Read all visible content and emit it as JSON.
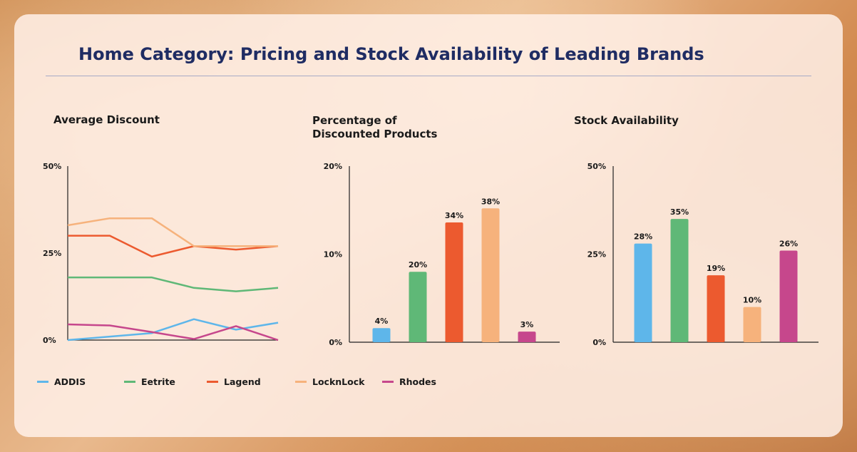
{
  "page": {
    "title": "Home Category: Pricing and Stock Availability of Leading Brands"
  },
  "colors": {
    "ADDIS": "#5eb6ea",
    "Eetrite": "#5fb877",
    "Lagend": "#ec5a2f",
    "LocknLock": "#f6b27c",
    "Rhodes": "#c6478c",
    "title": "#1f2c63"
  },
  "legend": {
    "items": [
      "ADDIS",
      "Eetrite",
      "Lagend",
      "LocknLock",
      "Rhodes"
    ]
  },
  "chart_data": [
    {
      "type": "line",
      "title": "Average Discount",
      "x": [
        1,
        2,
        3,
        4,
        5,
        6
      ],
      "ylim": [
        0,
        50
      ],
      "yticks": [
        "0%",
        "25%",
        "50%"
      ],
      "series": [
        {
          "name": "ADDIS",
          "values": [
            0,
            1,
            2,
            6,
            3,
            5
          ]
        },
        {
          "name": "Eetrite",
          "values": [
            18,
            18,
            18,
            15,
            14,
            15
          ]
        },
        {
          "name": "Lagend",
          "values": [
            30,
            30,
            24,
            27,
            26,
            27
          ]
        },
        {
          "name": "LocknLock",
          "values": [
            33,
            35,
            35,
            27,
            27,
            27
          ]
        },
        {
          "name": "Rhodes",
          "values": [
            4.5,
            4.2,
            2.3,
            0.3,
            4,
            0
          ]
        }
      ]
    },
    {
      "type": "bar",
      "title": "Percentage of Discounted Products",
      "title_lines": [
        "Percentage of",
        "Discounted Products"
      ],
      "categories": [
        "ADDIS",
        "Eetrite",
        "Lagend",
        "LocknLock",
        "Rhodes"
      ],
      "values": [
        4,
        20,
        34,
        38,
        3
      ],
      "labels": [
        "4%",
        "20%",
        "34%",
        "38%",
        "3%"
      ],
      "ylim": [
        0,
        50
      ],
      "yticks": [
        "0%",
        "10%",
        "20%"
      ]
    },
    {
      "type": "bar",
      "title": "Stock Availability",
      "categories": [
        "ADDIS",
        "Eetrite",
        "Lagend",
        "LocknLock",
        "Rhodes"
      ],
      "values": [
        28,
        35,
        19,
        10,
        26
      ],
      "labels": [
        "28%",
        "35%",
        "19%",
        "10%",
        "26%"
      ],
      "ylim": [
        0,
        50
      ],
      "yticks": [
        "0%",
        "25%",
        "50%"
      ]
    }
  ]
}
